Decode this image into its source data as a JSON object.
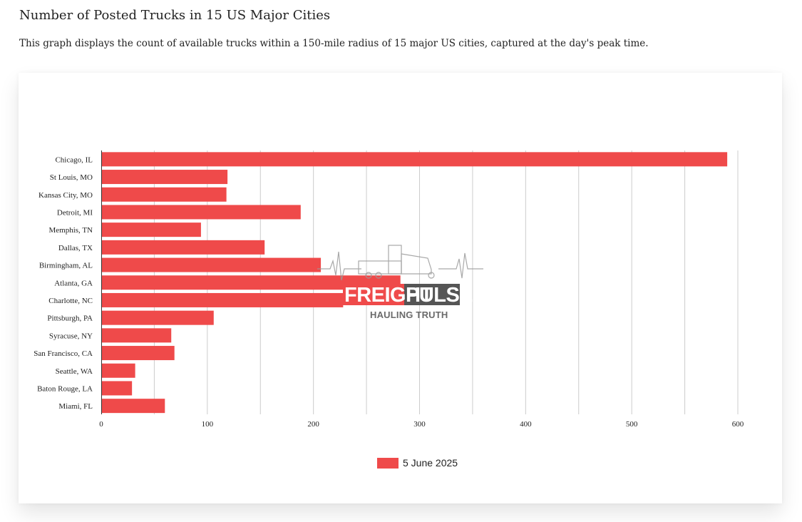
{
  "header": {
    "title": "Number of Posted Trucks in 15 US Major Cities",
    "subtitle": "This graph displays the count of available trucks within a 150-mile radius of 15 major US cities, captured at the day's peak time."
  },
  "chart_data": {
    "type": "bar",
    "orientation": "horizontal",
    "categories": [
      "Chicago, IL",
      "St Louis, MO",
      "Kansas City, MO",
      "Detroit, MI",
      "Memphis, TN",
      "Dallas, TX",
      "Birmingham, AL",
      "Atlanta, GA",
      "Charlotte, NC",
      "Pittsburgh, PA",
      "Syracuse, NY",
      "San Francisco, CA",
      "Seattle, WA",
      "Baton Rouge, LA",
      "Miami, FL"
    ],
    "series": [
      {
        "name": "5 June 2025",
        "color": "#ef4a4a",
        "values": [
          590,
          119,
          118,
          188,
          94,
          154,
          207,
          282,
          228,
          106,
          66,
          69,
          32,
          29,
          60
        ]
      }
    ],
    "xlim": [
      0,
      600
    ],
    "xticks": [
      0,
      100,
      200,
      300,
      400,
      500,
      600
    ],
    "grid_step": 50,
    "grid": true,
    "legend_position": "bottom-center",
    "title": "",
    "xlabel": "",
    "ylabel": ""
  },
  "legend": {
    "label": "5 June 2025",
    "color": "#ef4a4a"
  },
  "watermark": {
    "word1": "FREIGHT",
    "word2": "PULSE",
    "tagline": "HAULING TRUTH"
  }
}
